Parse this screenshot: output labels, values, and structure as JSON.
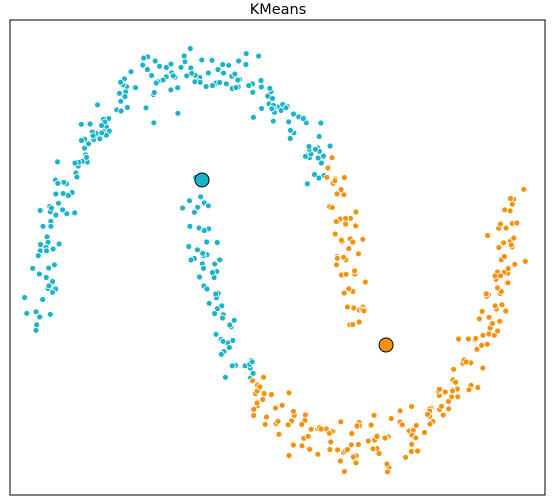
{
  "chart_data": {
    "type": "scatter",
    "title": "KMeans",
    "xlabel": "",
    "ylabel": "",
    "xlim": [
      -1.2,
      2.2
    ],
    "ylim": [
      -0.7,
      1.2
    ],
    "show_ticks": false,
    "grid": false,
    "colors": {
      "cluster_0": "#1cb3c8",
      "cluster_1": "#f5910d",
      "point_edge": "#ffffff",
      "center_edge": "#000000"
    },
    "series": [
      {
        "color": "#1cb3c8",
        "points": []
      },
      {
        "color": "#f5910d",
        "points": []
      }
    ],
    "centers": [
      {
        "x": 0.02,
        "y": 0.56,
        "color": "#1cb3c8"
      },
      {
        "x": 1.19,
        "y": -0.1,
        "color": "#f5910d"
      }
    ]
  }
}
